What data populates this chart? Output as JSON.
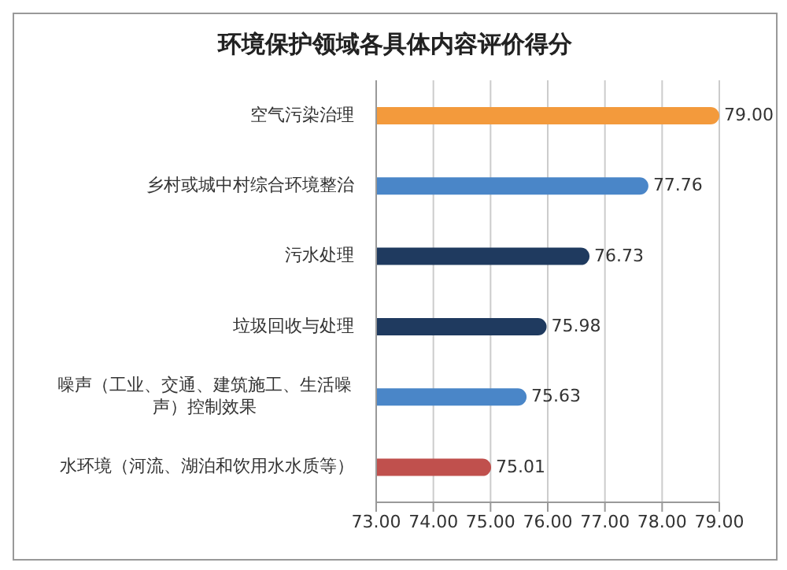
{
  "chart_data": {
    "type": "bar",
    "orientation": "horizontal",
    "title": "环境保护领域各具体内容评价得分",
    "categories": [
      "空气污染治理",
      "乡村或城中村综合环境整治",
      "污水处理",
      "垃圾回收与处理",
      "噪声（工业、交通、建筑施工、生活噪声）控制效果",
      "水环境（河流、湖泊和饮用水水质等）"
    ],
    "values": [
      79.0,
      77.76,
      76.73,
      75.98,
      75.63,
      75.01
    ],
    "value_labels": [
      "79.00",
      "77.76",
      "76.73",
      "75.98",
      "75.63",
      "75.01"
    ],
    "colors": [
      "#f39a3c",
      "#4a86c8",
      "#1f3a5f",
      "#1f3a5f",
      "#4a86c8",
      "#c0504d"
    ],
    "xlim": [
      73,
      79
    ],
    "xticks": [
      {
        "value": 73,
        "label": "73.00"
      },
      {
        "value": 74,
        "label": "74.00"
      },
      {
        "value": 75,
        "label": "75.00"
      },
      {
        "value": 76,
        "label": "76.00"
      },
      {
        "value": 77,
        "label": "77.00"
      },
      {
        "value": 78,
        "label": "78.00"
      },
      {
        "value": 79,
        "label": "79.00"
      }
    ],
    "grid": "x",
    "legend": false
  }
}
